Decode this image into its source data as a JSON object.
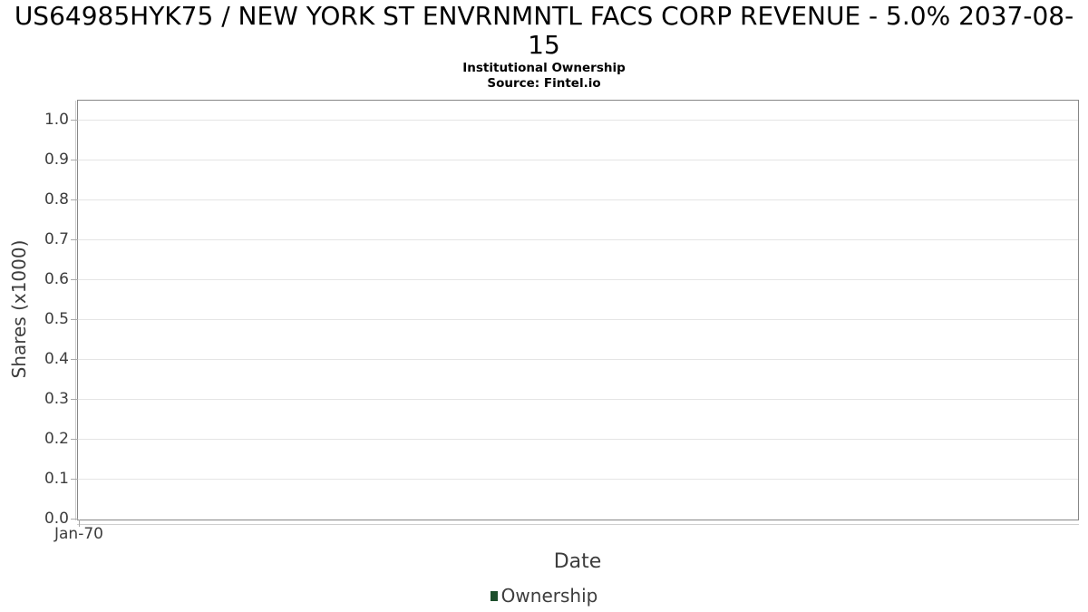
{
  "chart_data": {
    "type": "line",
    "title": "US64985HYK75 / NEW YORK ST ENVRNMNTL FACS CORP REVENUE - 5.0% 2037-08-15",
    "subtitle": "Institutional Ownership",
    "source": "Source: Fintel.io",
    "xlabel": "Date",
    "ylabel": "Shares (x1000)",
    "x_ticks": [
      "Jan-70"
    ],
    "y_ticks": [
      "0.0",
      "0.1",
      "0.2",
      "0.3",
      "0.4",
      "0.5",
      "0.6",
      "0.7",
      "0.8",
      "0.9",
      "1.0"
    ],
    "ylim": [
      0,
      1.05
    ],
    "grid": "horizontal",
    "legend_position": "bottom",
    "series": [
      {
        "name": "Ownership",
        "color": "#1d4f2c",
        "values": []
      }
    ],
    "colors": {
      "plot_border": "#878787",
      "gridline": "#e5e5e5",
      "tick_mark": "#aaaaaa",
      "axis_line": "#cfcfcf",
      "tick_text": "#3d3d3d",
      "title_text": "#000000",
      "series_ownership": "#1d4f2c"
    }
  }
}
